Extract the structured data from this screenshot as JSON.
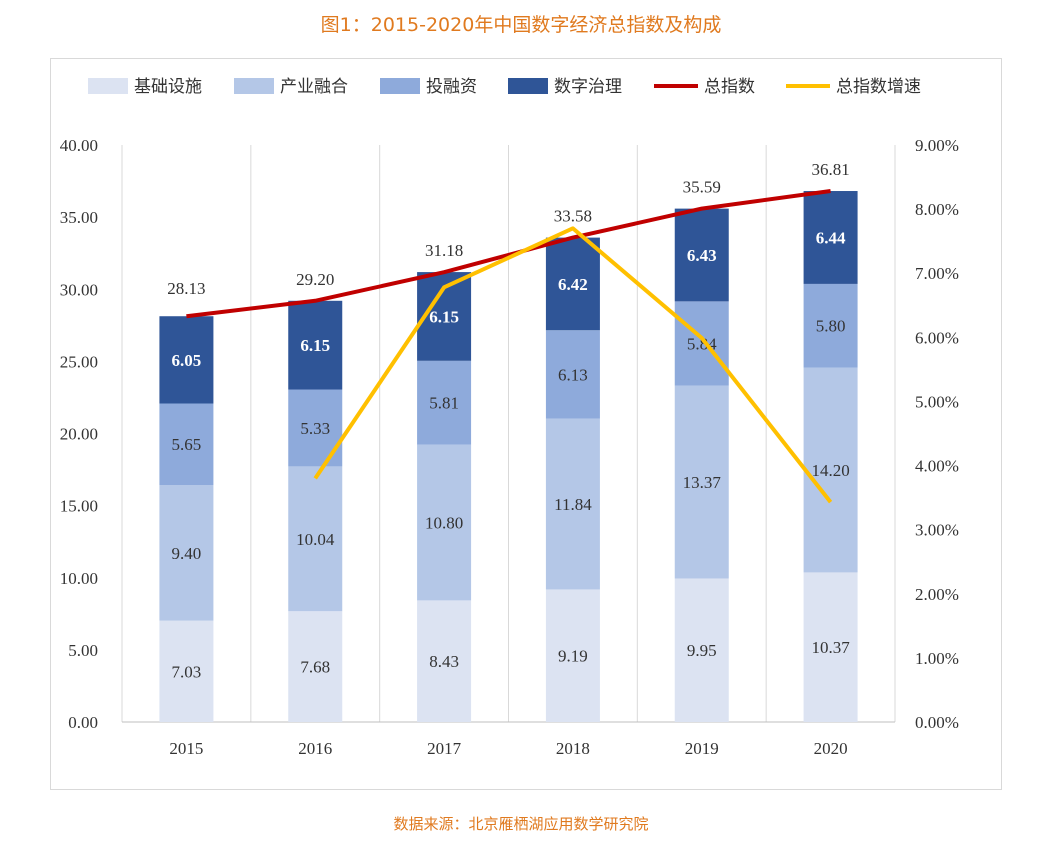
{
  "title": "图1：2015-2020年中国数字经济总指数及构成",
  "source": "数据来源：北京雁栖湖应用数学研究院",
  "chart_data": {
    "type": "bar",
    "stacked": true,
    "categories": [
      "2015",
      "2016",
      "2017",
      "2018",
      "2019",
      "2020"
    ],
    "series": [
      {
        "name": "基础设施",
        "kind": "bar",
        "color": "#dce3f2",
        "values": [
          7.03,
          7.68,
          8.43,
          9.19,
          9.95,
          10.37
        ],
        "labels": [
          "7.03",
          "7.68",
          "8.43",
          "9.19",
          "9.95",
          "10.37"
        ]
      },
      {
        "name": "产业融合",
        "kind": "bar",
        "color": "#b4c7e7",
        "values": [
          9.4,
          10.04,
          10.8,
          11.84,
          13.37,
          14.2
        ],
        "labels": [
          "9.40",
          "10.04",
          "10.80",
          "11.84",
          "13.37",
          "14.20"
        ]
      },
      {
        "name": "投融资",
        "kind": "bar",
        "color": "#8eaadb",
        "values": [
          5.65,
          5.33,
          5.81,
          6.13,
          5.84,
          5.8
        ],
        "labels": [
          "5.65",
          "5.33",
          "5.81",
          "6.13",
          "5.84",
          "5.80"
        ]
      },
      {
        "name": "数字治理",
        "kind": "bar",
        "color": "#2f5597",
        "values": [
          6.05,
          6.15,
          6.15,
          6.42,
          6.43,
          6.44
        ],
        "labels": [
          "6.05",
          "6.15",
          "6.15",
          "6.42",
          "6.43",
          "6.44"
        ]
      },
      {
        "name": "总指数",
        "kind": "line",
        "axis": "left",
        "color": "#c00000",
        "values": [
          28.13,
          29.2,
          31.18,
          33.58,
          35.59,
          36.81
        ],
        "labels": [
          "28.13",
          "29.20",
          "31.18",
          "33.58",
          "35.59",
          "36.81"
        ]
      },
      {
        "name": "总指数增速",
        "kind": "line",
        "axis": "right",
        "color": "#ffc000",
        "values": [
          null,
          3.8,
          6.78,
          7.7,
          5.99,
          3.43
        ]
      }
    ],
    "ylim": [
      0,
      40
    ],
    "yticks": [
      "0.00",
      "5.00",
      "10.00",
      "15.00",
      "20.00",
      "25.00",
      "30.00",
      "35.00",
      "40.00"
    ],
    "y2lim": [
      0,
      9
    ],
    "y2ticks": [
      "0.00%",
      "1.00%",
      "2.00%",
      "3.00%",
      "4.00%",
      "5.00%",
      "6.00%",
      "7.00%",
      "8.00%",
      "9.00%"
    ],
    "grid": "vertical",
    "legend": "top"
  }
}
